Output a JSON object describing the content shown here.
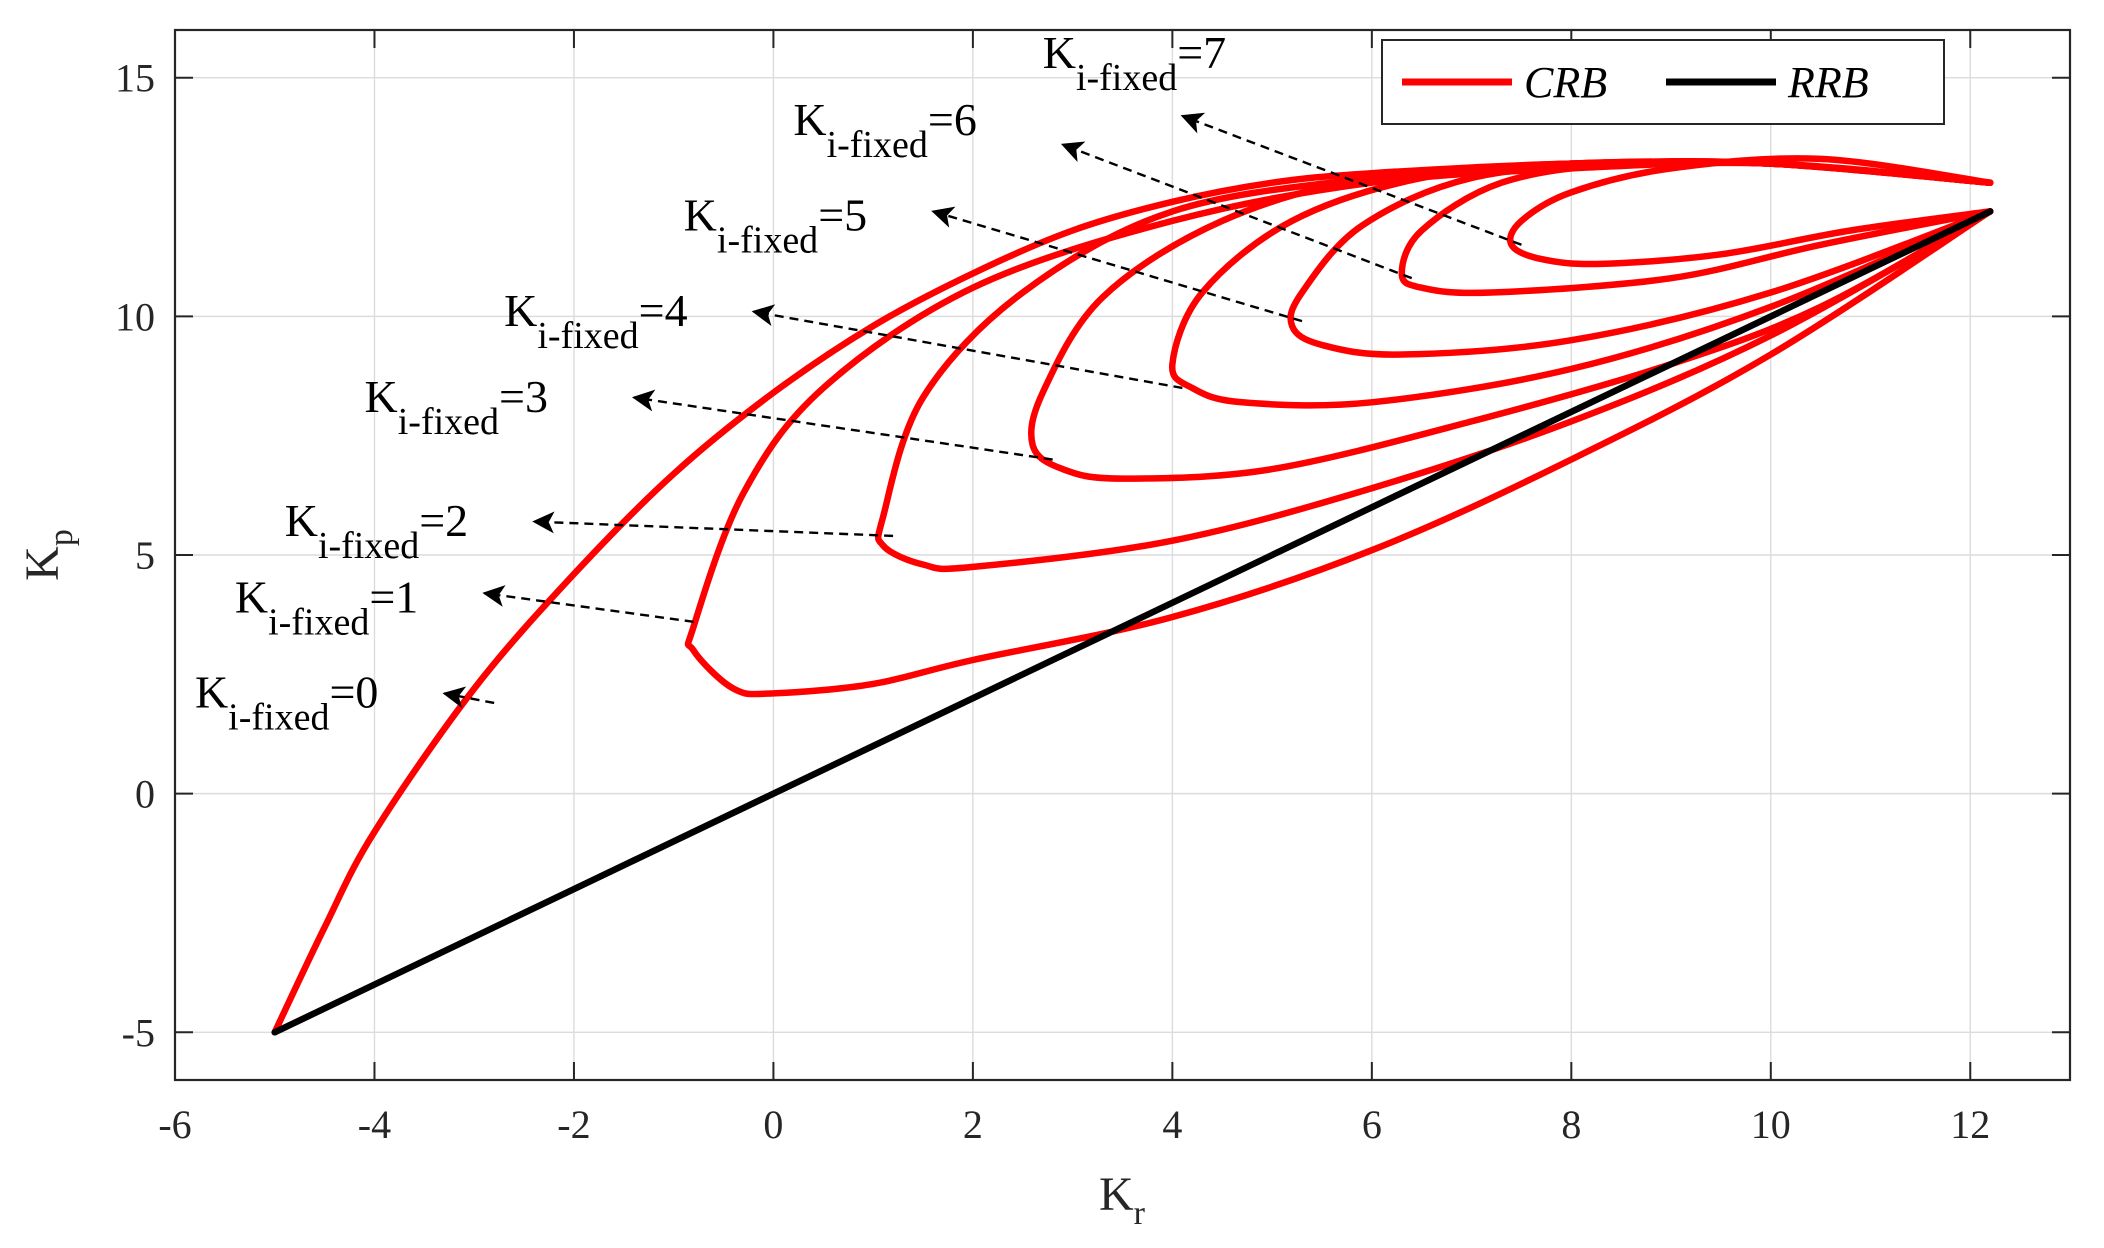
{
  "chart_data": {
    "type": "line",
    "xlabel": {
      "main": "K",
      "sub": "r"
    },
    "ylabel": {
      "main": "K",
      "sub": "p"
    },
    "xlim": [
      -6,
      13
    ],
    "ylim": [
      -6,
      16
    ],
    "xticks": [
      -6,
      -4,
      -2,
      0,
      2,
      4,
      6,
      8,
      10,
      12
    ],
    "yticks": [
      -5,
      0,
      5,
      10,
      15
    ],
    "xtick_labels": [
      "-6",
      "-4",
      "-2",
      "0",
      "2",
      "4",
      "6",
      "8",
      "10",
      "12"
    ],
    "ytick_labels": [
      "-5",
      "0",
      "5",
      "10",
      "15"
    ],
    "grid": true,
    "legend": {
      "position": "top-right",
      "entries": [
        {
          "name": "CRB",
          "color": "#ff0000"
        },
        {
          "name": "RRB",
          "color": "#000000"
        }
      ]
    },
    "series": [
      {
        "name": "RRB",
        "color": "#000000",
        "points": [
          [
            -5,
            -5
          ],
          [
            12.2,
            12.2
          ]
        ]
      },
      {
        "name": "CRB",
        "label": "K_i-fixed=0",
        "color": "#ff0000",
        "points": [
          [
            -5,
            -5
          ],
          [
            -4.5,
            -2.8
          ],
          [
            -4,
            -0.8
          ],
          [
            -3,
            2.2
          ],
          [
            -2,
            4.6
          ],
          [
            -1,
            6.7
          ],
          [
            0,
            8.4
          ],
          [
            1,
            9.8
          ],
          [
            2,
            10.9
          ],
          [
            3,
            11.8
          ],
          [
            4,
            12.4
          ],
          [
            5,
            12.8
          ],
          [
            6,
            13
          ],
          [
            8,
            13.2
          ],
          [
            10,
            13.2
          ],
          [
            12.2,
            12.8
          ]
        ]
      },
      {
        "name": "CRB",
        "label": "K_i-fixed=1",
        "color": "#ff0000",
        "points": [
          [
            12.2,
            12.8
          ],
          [
            10,
            13.2
          ],
          [
            8,
            13.1
          ],
          [
            6,
            12.8
          ],
          [
            4,
            12
          ],
          [
            2,
            10.6
          ],
          [
            0.5,
            8.5
          ],
          [
            -0.3,
            6.3
          ],
          [
            -0.8,
            3.5
          ],
          [
            -0.8,
            3
          ],
          [
            -0.4,
            2.2
          ],
          [
            0,
            2.1
          ],
          [
            1,
            2.3
          ],
          [
            2,
            2.8
          ],
          [
            4,
            3.7
          ],
          [
            6,
            5.1
          ],
          [
            8,
            7
          ],
          [
            10,
            9.2
          ],
          [
            12.2,
            12.2
          ]
        ]
      },
      {
        "name": "CRB",
        "label": "K_i-fixed=2",
        "color": "#ff0000",
        "points": [
          [
            12.2,
            12.8
          ],
          [
            10,
            13.2
          ],
          [
            8,
            13.2
          ],
          [
            6,
            12.9
          ],
          [
            4,
            12.2
          ],
          [
            2.5,
            10.5
          ],
          [
            1.5,
            8.3
          ],
          [
            1.1,
            5.8
          ],
          [
            1.1,
            5.2
          ],
          [
            1.5,
            4.8
          ],
          [
            2,
            4.75
          ],
          [
            4,
            5.3
          ],
          [
            6,
            6.4
          ],
          [
            8,
            7.8
          ],
          [
            10,
            9.6
          ],
          [
            12.2,
            12.2
          ]
        ]
      },
      {
        "name": "CRB",
        "label": "K_i-fixed=3",
        "color": "#ff0000",
        "points": [
          [
            12.2,
            12.8
          ],
          [
            10,
            13.2
          ],
          [
            8,
            13.2
          ],
          [
            6,
            12.9
          ],
          [
            4.5,
            12
          ],
          [
            3.3,
            10.4
          ],
          [
            2.7,
            8.4
          ],
          [
            2.6,
            7.3
          ],
          [
            2.9,
            6.8
          ],
          [
            3.5,
            6.6
          ],
          [
            5,
            6.8
          ],
          [
            7,
            7.8
          ],
          [
            9,
            9
          ],
          [
            10.5,
            10.2
          ],
          [
            12.2,
            12.2
          ]
        ]
      },
      {
        "name": "CRB",
        "label": "K_i-fixed=4",
        "color": "#ff0000",
        "points": [
          [
            12.2,
            12.8
          ],
          [
            10,
            13.2
          ],
          [
            8,
            13.2
          ],
          [
            6.5,
            12.9
          ],
          [
            5.2,
            12
          ],
          [
            4.3,
            10.5
          ],
          [
            4,
            9
          ],
          [
            4.2,
            8.5
          ],
          [
            4.7,
            8.2
          ],
          [
            6,
            8.2
          ],
          [
            8,
            8.9
          ],
          [
            10,
            10.2
          ],
          [
            12.2,
            12.2
          ]
        ]
      },
      {
        "name": "CRB",
        "label": "K_i-fixed=5",
        "color": "#ff0000",
        "points": [
          [
            12.2,
            12.8
          ],
          [
            10,
            13.2
          ],
          [
            8.5,
            13.2
          ],
          [
            7,
            12.9
          ],
          [
            5.9,
            11.9
          ],
          [
            5.3,
            10.5
          ],
          [
            5.2,
            9.8
          ],
          [
            5.5,
            9.4
          ],
          [
            6.3,
            9.2
          ],
          [
            8,
            9.5
          ],
          [
            10,
            10.5
          ],
          [
            12.2,
            12.2
          ]
        ]
      },
      {
        "name": "CRB",
        "label": "K_i-fixed=6",
        "color": "#ff0000",
        "points": [
          [
            12.2,
            12.8
          ],
          [
            10,
            13.2
          ],
          [
            8.5,
            13.2
          ],
          [
            7.3,
            12.8
          ],
          [
            6.5,
            11.8
          ],
          [
            6.3,
            10.9
          ],
          [
            6.5,
            10.6
          ],
          [
            7.2,
            10.5
          ],
          [
            9,
            10.8
          ],
          [
            10.5,
            11.5
          ],
          [
            12.2,
            12.2
          ]
        ]
      },
      {
        "name": "CRB",
        "label": "K_i-fixed=7",
        "color": "#ff0000",
        "points": [
          [
            12.2,
            12.8
          ],
          [
            10.5,
            13.3
          ],
          [
            9,
            13.1
          ],
          [
            8,
            12.6
          ],
          [
            7.5,
            12
          ],
          [
            7.4,
            11.5
          ],
          [
            7.7,
            11.2
          ],
          [
            8.3,
            11.1
          ],
          [
            9.5,
            11.3
          ],
          [
            10.8,
            11.8
          ],
          [
            12.2,
            12.2
          ]
        ]
      }
    ],
    "annotations": [
      {
        "text_main": "K",
        "text_sub": "i-fixed",
        "text_tail": "=0",
        "value": 0,
        "text_at": [
          -5.8,
          1.8
        ],
        "arrow_from": [
          -2.8,
          1.9
        ],
        "arrow_to": [
          -3.3,
          2.1
        ]
      },
      {
        "text_main": "K",
        "text_sub": "i-fixed",
        "text_tail": "=1",
        "value": 1,
        "text_at": [
          -5.4,
          3.8
        ],
        "arrow_from": [
          -0.8,
          3.6
        ],
        "arrow_to": [
          -2.9,
          4.2
        ]
      },
      {
        "text_main": "K",
        "text_sub": "i-fixed",
        "text_tail": "=2",
        "value": 2,
        "text_at": [
          -4.9,
          5.4
        ],
        "arrow_from": [
          1.2,
          5.4
        ],
        "arrow_to": [
          -2.4,
          5.7
        ]
      },
      {
        "text_main": "K",
        "text_sub": "i-fixed",
        "text_tail": "=3",
        "value": 3,
        "text_at": [
          -4.1,
          8
        ],
        "arrow_from": [
          2.8,
          7.0
        ],
        "arrow_to": [
          -1.4,
          8.3
        ]
      },
      {
        "text_main": "K",
        "text_sub": "i-fixed",
        "text_tail": "=4",
        "value": 4,
        "text_at": [
          -2.7,
          9.8
        ],
        "arrow_from": [
          4.1,
          8.5
        ],
        "arrow_to": [
          -0.2,
          10.1
        ]
      },
      {
        "text_main": "K",
        "text_sub": "i-fixed",
        "text_tail": "=5",
        "value": 5,
        "text_at": [
          -0.9,
          11.8
        ],
        "arrow_from": [
          5.3,
          9.9
        ],
        "arrow_to": [
          1.6,
          12.2
        ]
      },
      {
        "text_main": "K",
        "text_sub": "i-fixed",
        "text_tail": "=6",
        "value": 6,
        "text_at": [
          0.2,
          13.8
        ],
        "arrow_from": [
          6.4,
          10.8
        ],
        "arrow_to": [
          2.9,
          13.6
        ]
      },
      {
        "text_main": "K",
        "text_sub": "i-fixed",
        "text_tail": "=7",
        "value": 7,
        "text_at": [
          2.7,
          15.2
        ],
        "arrow_from": [
          7.5,
          11.5
        ],
        "arrow_to": [
          4.1,
          14.2
        ]
      }
    ]
  }
}
